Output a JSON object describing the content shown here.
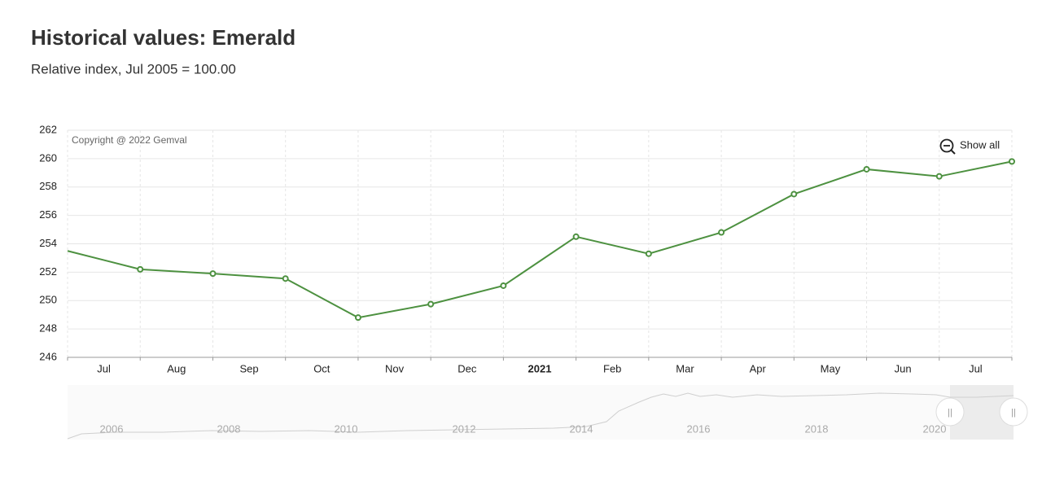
{
  "title": "Historical values: Emerald",
  "subtitle": "Relative index, Jul 2005 = 100.00",
  "copyright": "Copyright @ 2022 Gemval",
  "show_all_button": "Show all",
  "chart_data": {
    "type": "line",
    "categories": [
      null,
      "Jul",
      "Aug",
      "Sep",
      "Oct",
      "Nov",
      "Dec",
      "2021",
      "Feb",
      "Mar",
      "Apr",
      "May",
      "Jun",
      "Jul"
    ],
    "series": [
      {
        "name": "Emerald",
        "color": "#4d9140",
        "values": [
          253.5,
          252.2,
          251.9,
          251.55,
          248.8,
          249.75,
          251.05,
          254.5,
          253.3,
          254.8,
          257.5,
          259.25,
          258.75,
          259.8
        ]
      }
    ],
    "ylim": [
      246,
      262
    ],
    "yticks": [
      246,
      248,
      250,
      252,
      254,
      256,
      258,
      260,
      262
    ],
    "grid": true,
    "navigator_labels": [
      "2006",
      "2008",
      "2010",
      "2012",
      "2014",
      "2016",
      "2018",
      "2020"
    ]
  }
}
